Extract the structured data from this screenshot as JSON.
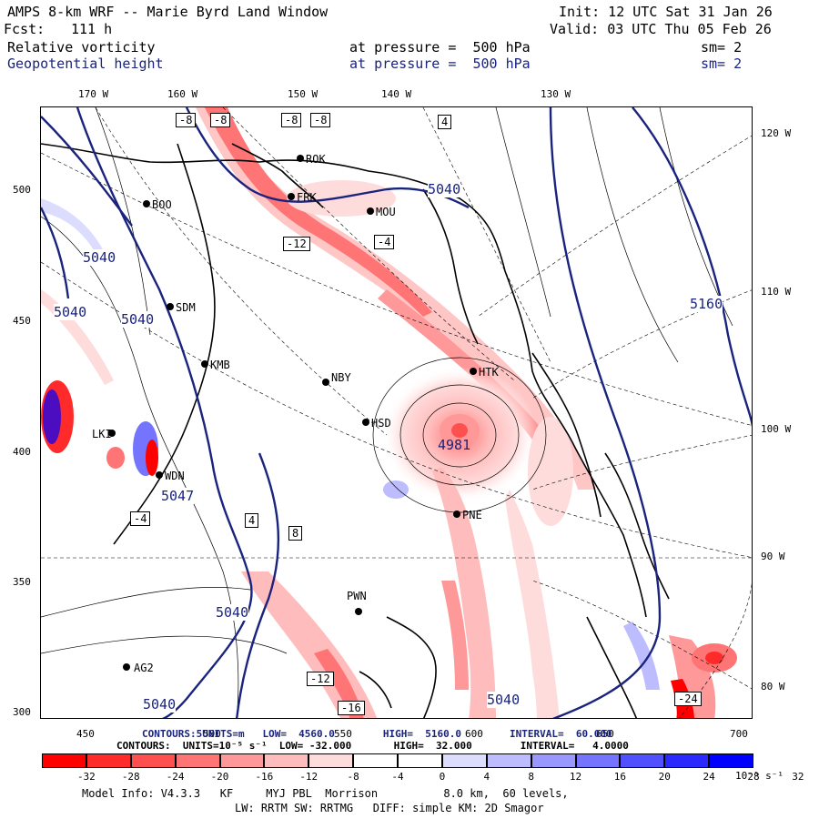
{
  "header": {
    "title": "AMPS 8-km WRF -- Marie Byrd Land Window",
    "init": "Init: 12 UTC Sat 31 Jan 26",
    "fcst_label": "Fcst:",
    "fcst_value": "111 h",
    "valid": "Valid: 03 UTC Thu 05 Feb 26",
    "field1": {
      "name": "Relative vorticity",
      "level": "at pressure =  500 hPa",
      "sm": "sm= 2"
    },
    "field2": {
      "name": "Geopotential height",
      "level": "at pressure =  500 hPa",
      "sm": "sm= 2"
    }
  },
  "map": {
    "top_lon_labels": [
      "170 W",
      "160 W",
      "150 W",
      "140 W",
      "130 W"
    ],
    "right_lon_labels": [
      "120 W",
      "110 W",
      "100 W",
      "90 W",
      "80 W"
    ],
    "left_axis_labels": [
      "500",
      "450",
      "400",
      "350",
      "300"
    ],
    "bottom_axis_labels": [
      "450",
      "500",
      "550",
      "600",
      "650",
      "700"
    ],
    "stations": [
      {
        "id": "BOO"
      },
      {
        "id": "FRK"
      },
      {
        "id": "ROK"
      },
      {
        "id": "MOU"
      },
      {
        "id": "SDM"
      },
      {
        "id": "KMB"
      },
      {
        "id": "NBY"
      },
      {
        "id": "HTK"
      },
      {
        "id": "HSD"
      },
      {
        "id": "LKI"
      },
      {
        "id": "WDN"
      },
      {
        "id": "PNE"
      },
      {
        "id": "PWN"
      },
      {
        "id": "AG2"
      }
    ],
    "height_labels": [
      "5040",
      "5040",
      "5040",
      "5040",
      "5040",
      "5040",
      "5047",
      "5160",
      "4981",
      "5040"
    ],
    "vort_labels": [
      "-8",
      "-8",
      "-8",
      "-8",
      "-12",
      "-4",
      "4",
      "-16",
      "-12",
      "-24",
      "8",
      "-4",
      "4"
    ]
  },
  "bottom_stats": {
    "line1": "CONTOURS:5UNITS=m   LOW=  4560.0        HIGH=  5160.0        INTERVAL=  60.000",
    "line2": "CONTOURS:  UNITS=10⁻⁵ s⁻¹  LOW= -32.000       HIGH=  32.000        INTERVAL=   4.0000"
  },
  "colorbar": {
    "ticks": [
      "-32",
      "-28",
      "-24",
      "-20",
      "-16",
      "-12",
      "-8",
      "-4",
      "0",
      "4",
      "8",
      "12",
      "16",
      "20",
      "24",
      "28",
      "32"
    ],
    "unit": "10⁻⁵ s⁻¹",
    "colors": [
      "#ff0000",
      "#ff2a2a",
      "#ff5050",
      "#ff7474",
      "#ff9898",
      "#ffbcbc",
      "#ffdcdc",
      "#ffffff",
      "#ffffff",
      "#dcdcff",
      "#bcbcff",
      "#9898ff",
      "#7474ff",
      "#5050ff",
      "#2a2aff",
      "#0000ff"
    ]
  },
  "footer": {
    "line1": "Model Info: V4.3.3   KF     MYJ PBL  Morrison          8.0 km,  60 levels,",
    "line2": "LW: RRTM SW: RRTMG   DIFF: simple KM: 2D Smagor"
  }
}
